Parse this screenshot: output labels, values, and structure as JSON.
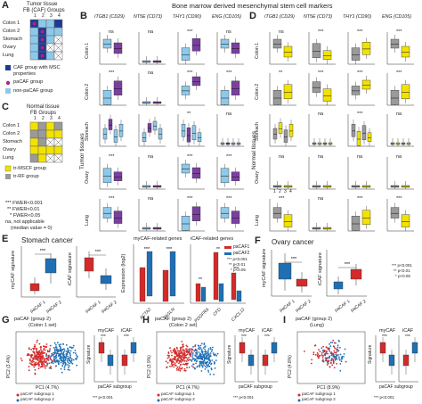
{
  "panels": {
    "A": {
      "letter": "A",
      "title_line1": "Tumor tissue",
      "title_line2": "FB (CAF) Groups",
      "col_labels": [
        "1",
        "2",
        "3",
        "4"
      ],
      "row_labels": [
        "Colon 1",
        "Colon 2",
        "Stomach",
        "Ovary",
        "Lung"
      ],
      "legend": [
        {
          "label": "CAF group with MSC properties",
          "color": "#1f3b8f"
        },
        {
          "label": "paCAF group",
          "color": "#b01f8a"
        },
        {
          "label": "non-paCAF group",
          "color": "#8ec9ea"
        }
      ]
    },
    "C": {
      "letter": "C",
      "title_line1": "Normal tissue",
      "title_line2": "FB Groups",
      "col_labels": [
        "1",
        "2",
        "3",
        "4"
      ],
      "row_labels": [
        "Colon 1",
        "Colon 2",
        "Stomach",
        "Ovary",
        "Lung"
      ],
      "legend": [
        {
          "label": "tr-MSCF group",
          "color": "#f2e200"
        },
        {
          "label": "tr-RF group",
          "color": "#9a9a9a"
        }
      ],
      "notes": [
        "*** FWER<0.001",
        "** FWER<0.01",
        "* FWER<0.05",
        "na, not applicable",
        "(median value = 0)"
      ]
    },
    "B": {
      "letter": "B",
      "header": "Bone marrow derived mesenchymal stem cell markers",
      "genes": [
        "ITGB1 (CD29)",
        "NT5E (CD73)",
        "THY1 (CD90)",
        "ENG (CD105)"
      ],
      "side_label": "Tumor tissues",
      "rows": [
        {
          "name": "Colon 1",
          "sig": [
            "ns",
            "na",
            "***",
            "ns"
          ]
        },
        {
          "name": "Colon 2",
          "sig": [
            "***",
            "na",
            "***",
            "***"
          ]
        },
        {
          "name": "Stomach",
          "sig": [
            "",
            "",
            "**",
            "na"
          ]
        },
        {
          "name": "Ovary",
          "sig": [
            "***",
            "na",
            "***",
            "***"
          ]
        },
        {
          "name": "Lung",
          "sig": [
            "***",
            "na",
            "***",
            "***"
          ]
        }
      ]
    },
    "D": {
      "letter": "D",
      "genes": [
        "ITGB1 (CD29)",
        "NT5E (CD73)",
        "THY1 (CD90)",
        "ENG (CD105)"
      ],
      "side_label": "Normal tissues",
      "rows": [
        {
          "name": "Colon 1",
          "sig": [
            "ns",
            "***",
            "***",
            "***"
          ]
        },
        {
          "name": "Colon 2",
          "sig": [
            "**",
            "***",
            "***",
            "***"
          ]
        },
        {
          "name": "Stomach",
          "sig": [
            "",
            "na",
            "***",
            "na"
          ]
        },
        {
          "name": "Ovary",
          "sig": [
            "na",
            "na",
            "na",
            "na"
          ]
        },
        {
          "name": "Lung",
          "sig": [
            "***",
            "na",
            "***",
            "***"
          ]
        }
      ],
      "tick_labels": [
        "1",
        "2",
        "3",
        "4"
      ]
    },
    "E": {
      "letter": "E",
      "title": "Stomach cancer",
      "mycaf_title": "myCAF-related genes",
      "icaf_title": "iCAF-related genes",
      "ylabel_left": "myCAF signature",
      "ylabel_right": "iCAF signature",
      "ylabel_expr": "Expression (log2)",
      "genes_my": [
        "ACTA2",
        "TAGLN"
      ],
      "genes_i": [
        "PDGFRA",
        "CFD",
        "CXCL12"
      ],
      "xticks": [
        "paCAF 1",
        "paCAF 2"
      ],
      "legend": [
        {
          "label": "paCAF1",
          "color": "#d42a2a"
        },
        {
          "label": "paCAF2",
          "color": "#1f6fb4"
        }
      ],
      "pvals": [
        "*** p<0.001",
        "** p<0.01",
        "* p<0.05"
      ]
    },
    "F": {
      "letter": "F",
      "title": "Ovary cancer",
      "ylabel_left": "myCAF signature",
      "ylabel_right": "iCAF signature",
      "xticks": [
        "paCAF 1",
        "paCAF 2"
      ],
      "pvals": [
        "*** p<0.001",
        "** p<0.01",
        "* p<0.05"
      ]
    },
    "G": {
      "letter": "G",
      "title_line1": "paCAF (group 2)",
      "title_line2": "(Colon 1 set)",
      "xlabel": "PC1 (4.7%)",
      "ylabel": "PC2 (3.4%)",
      "small_titles": [
        "myCAF",
        "iCAF"
      ],
      "ylabel_sig": "Signature",
      "xlabel_sub": "paCAF subgroup",
      "legend": [
        "paCAF subgroup 1",
        "paCAF subgroup 2"
      ],
      "pval": "*** p<0.001"
    },
    "H": {
      "letter": "H",
      "title_line1": "paCAF (group 2)",
      "title_line2": "(Colon 2 set)",
      "xlabel": "PC1 (4.7%)",
      "ylabel": "PC2 (3.9%)",
      "small_titles": [
        "myCAF",
        "iCAF"
      ],
      "ylabel_sig": "Signature",
      "xlabel_sub": "paCAF subgroup",
      "legend": [
        "paCAF subgroup 1",
        "paCAF subgroup 2"
      ],
      "pval": "*** p<0.001"
    },
    "I": {
      "letter": "I",
      "title_line1": "paCAF (group 2)",
      "title_line2": "(Lung)",
      "xlabel": "PC1 (8.9%)",
      "ylabel": "PC2 (4.8%)",
      "small_titles": [
        "myCAF",
        "iCAF"
      ],
      "ylabel_sig": "Signature",
      "xlabel_sub": "paCAF subgroup",
      "legend": [
        "paCAF subgroup 1",
        "paCAF subgroup 2"
      ],
      "pval": "*** p<0.001"
    }
  },
  "colors": {
    "dark_blue": "#1f3b8f",
    "light_blue": "#8ec9ea",
    "purple": "#7b3fa0",
    "magenta": "#b01f8a",
    "yellow": "#f2e200",
    "grey": "#9a9a9a",
    "red": "#d42a2a",
    "blue": "#1f6fb4"
  }
}
